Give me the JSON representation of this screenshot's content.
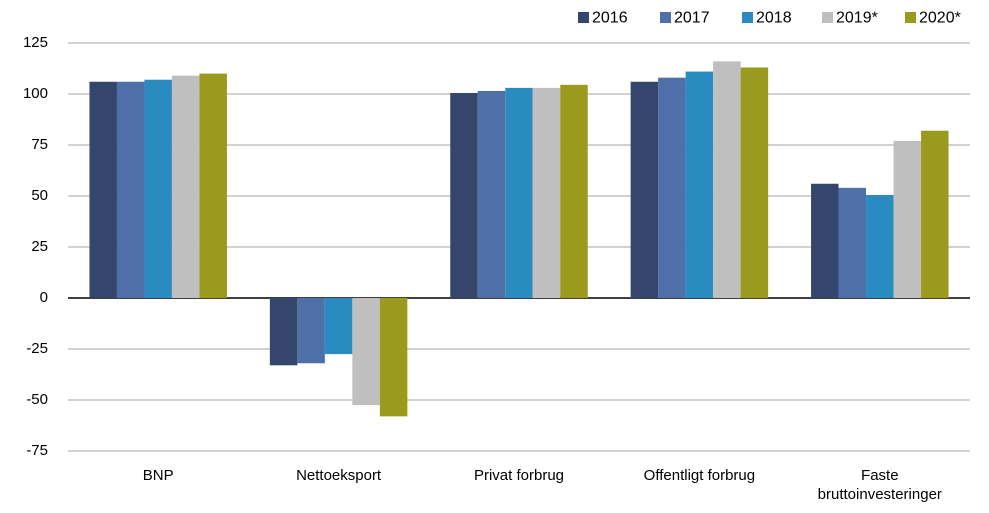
{
  "chart_data": {
    "type": "bar",
    "categories": [
      "BNP",
      "Nettoeksport",
      "Privat forbrug",
      "Offentligt forbrug",
      "Faste bruttoinvesteringer"
    ],
    "series": [
      {
        "name": "2016",
        "color": "#34466b",
        "values": [
          106,
          -33,
          100.5,
          106,
          56
        ]
      },
      {
        "name": "2017",
        "color": "#4f6fa8",
        "values": [
          106,
          -32,
          101.5,
          108,
          54
        ]
      },
      {
        "name": "2018",
        "color": "#2a8bc0",
        "values": [
          107,
          -27.5,
          103,
          111,
          50.5
        ]
      },
      {
        "name": "2019*",
        "color": "#bfbfbf",
        "values": [
          109,
          -52.5,
          103,
          116,
          77
        ]
      },
      {
        "name": "2020*",
        "color": "#9a9b1e",
        "values": [
          110,
          -58,
          104.5,
          113,
          82
        ]
      }
    ],
    "ylim": [
      -75,
      125
    ],
    "yticks": [
      -75,
      -50,
      -25,
      0,
      25,
      50,
      75,
      100,
      125
    ],
    "grid": true,
    "legend": "top-right"
  }
}
